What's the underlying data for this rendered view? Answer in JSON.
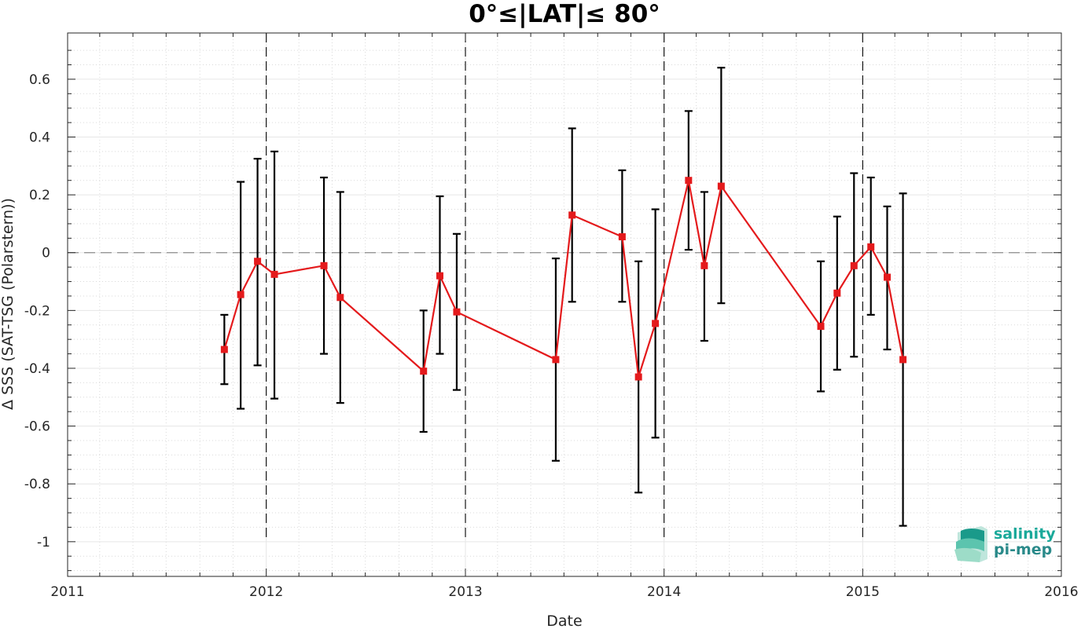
{
  "chart_data": {
    "type": "line",
    "title": "0°≤|LAT|≤ 80°",
    "xlabel": "Date",
    "ylabel": "Δ SSS (SAT-TSG (Polarstern))",
    "xlim": [
      "2011-01-01",
      "2016-01-01"
    ],
    "ylim": [
      -1.12,
      0.76
    ],
    "x_ticks": [
      "2011",
      "2012",
      "2013",
      "2014",
      "2015",
      "2016"
    ],
    "y_ticks": [
      -1,
      -0.8,
      -0.6,
      -0.4,
      -0.2,
      0,
      0.2,
      0.4,
      0.6
    ],
    "y_tick_labels": [
      "-1",
      "-0.8",
      "-0.6",
      "-0.4",
      "-0.2",
      "0",
      "0.2",
      "0.4",
      "0.6"
    ],
    "grid": true,
    "reference_line_y": 0,
    "year_boundary_lines": [
      "2012",
      "2013",
      "2014",
      "2015"
    ],
    "series": [
      {
        "color": "#e41a1c",
        "errorbar_color": "#000000",
        "points": [
          {
            "x": "2011-10-16",
            "y": -0.335,
            "low": -0.455,
            "high": -0.215
          },
          {
            "x": "2011-11-15",
            "y": -0.145,
            "low": -0.54,
            "high": 0.245
          },
          {
            "x": "2011-12-16",
            "y": -0.03,
            "low": -0.39,
            "high": 0.325
          },
          {
            "x": "2012-01-16",
            "y": -0.075,
            "low": -0.505,
            "high": 0.35
          },
          {
            "x": "2012-04-16",
            "y": -0.045,
            "low": -0.35,
            "high": 0.26
          },
          {
            "x": "2012-05-16",
            "y": -0.155,
            "low": -0.52,
            "high": 0.21
          },
          {
            "x": "2012-10-16",
            "y": -0.41,
            "low": -0.62,
            "high": -0.2
          },
          {
            "x": "2012-11-15",
            "y": -0.08,
            "low": -0.35,
            "high": 0.195
          },
          {
            "x": "2012-12-16",
            "y": -0.205,
            "low": -0.475,
            "high": 0.065
          },
          {
            "x": "2013-06-16",
            "y": -0.37,
            "low": -0.72,
            "high": -0.02
          },
          {
            "x": "2013-07-16",
            "y": 0.13,
            "low": -0.17,
            "high": 0.43
          },
          {
            "x": "2013-10-16",
            "y": 0.055,
            "low": -0.17,
            "high": 0.285
          },
          {
            "x": "2013-11-15",
            "y": -0.43,
            "low": -0.83,
            "high": -0.03
          },
          {
            "x": "2013-12-16",
            "y": -0.245,
            "low": -0.64,
            "high": 0.15
          },
          {
            "x": "2014-02-15",
            "y": 0.25,
            "low": 0.01,
            "high": 0.49
          },
          {
            "x": "2014-03-16",
            "y": -0.045,
            "low": -0.305,
            "high": 0.21
          },
          {
            "x": "2014-04-16",
            "y": 0.23,
            "low": -0.175,
            "high": 0.64
          },
          {
            "x": "2014-10-16",
            "y": -0.255,
            "low": -0.48,
            "high": -0.03
          },
          {
            "x": "2014-11-15",
            "y": -0.14,
            "low": -0.405,
            "high": 0.125
          },
          {
            "x": "2014-12-16",
            "y": -0.045,
            "low": -0.36,
            "high": 0.275
          },
          {
            "x": "2015-01-16",
            "y": 0.02,
            "low": -0.215,
            "high": 0.26
          },
          {
            "x": "2015-02-15",
            "y": -0.085,
            "low": -0.335,
            "high": 0.16
          },
          {
            "x": "2015-03-16",
            "y": -0.37,
            "low": -0.945,
            "high": 0.205
          }
        ]
      }
    ]
  },
  "logo": {
    "line1": "salinity",
    "line2": "pi-mep",
    "color_line1": "#1aa99a",
    "color_line2": "#2a8a8a"
  }
}
